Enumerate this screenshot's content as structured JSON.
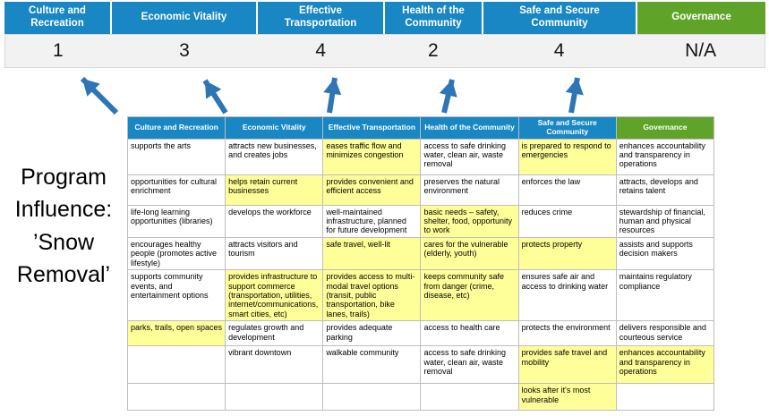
{
  "title": "Program Influence: ’Snow Removal’",
  "colors": {
    "header_blue": "#1887C4",
    "header_green": "#5FA428",
    "highlight_yellow": "#FFFF99",
    "arrow_blue": "#2E75B6",
    "score_band_gray": "#F2F2F2"
  },
  "banner": {
    "columns": [
      {
        "label": "Culture and Recreation",
        "score": "1",
        "color": "#1887C4"
      },
      {
        "label": "Economic Vitality",
        "score": "3",
        "color": "#1887C4"
      },
      {
        "label": "Effective Transportation",
        "score": "4",
        "color": "#1887C4"
      },
      {
        "label": "Health of the Community",
        "score": "2",
        "color": "#1887C4"
      },
      {
        "label": "Safe and Secure Community",
        "score": "4",
        "color": "#1887C4"
      },
      {
        "label": "Governance",
        "score": "N/A",
        "color": "#5FA428"
      }
    ]
  },
  "table": {
    "headers": [
      {
        "label": "Culture and Recreation",
        "color": "#1887C4"
      },
      {
        "label": "Economic Vitality",
        "color": "#1887C4"
      },
      {
        "label": "Effective Transportation",
        "color": "#1887C4"
      },
      {
        "label": "Health of the Community",
        "color": "#1887C4"
      },
      {
        "label": "Safe and Secure Community",
        "color": "#1887C4"
      },
      {
        "label": "Governance",
        "color": "#5FA428"
      }
    ],
    "rows": [
      [
        {
          "text": "supports the arts",
          "highlight": false
        },
        {
          "text": "attracts new businesses, and creates jobs",
          "highlight": false
        },
        {
          "text": "eases traffic flow and minimizes congestion",
          "highlight": true
        },
        {
          "text": "access to safe drinking water, clean air, waste removal",
          "highlight": false
        },
        {
          "text": "is prepared to respond to emergencies",
          "highlight": true
        },
        {
          "text": "enhances accountability and transparency in operations",
          "highlight": false
        }
      ],
      [
        {
          "text": "opportunities for cultural enrichment",
          "highlight": false
        },
        {
          "text": "helps retain current businesses",
          "highlight": true
        },
        {
          "text": "provides convenient and efficient access",
          "highlight": true
        },
        {
          "text": "preserves the natural environment",
          "highlight": false
        },
        {
          "text": "enforces the law",
          "highlight": false
        },
        {
          "text": "attracts, develops and retains talent",
          "highlight": false
        }
      ],
      [
        {
          "text": "life-long learning opportunities (libraries)",
          "highlight": false
        },
        {
          "text": "develops the workforce",
          "highlight": false
        },
        {
          "text": "well-maintained infrastructure, planned for future development",
          "highlight": false
        },
        {
          "text": "basic needs – safety, shelter, food, opportunity to work",
          "highlight": true
        },
        {
          "text": "reduces crime",
          "highlight": false
        },
        {
          "text": "stewardship of financial, human and physical resources",
          "highlight": false
        }
      ],
      [
        {
          "text": "encourages healthy people (promotes active lifestyle)",
          "highlight": false
        },
        {
          "text": "attracts visitors and tourism",
          "highlight": false
        },
        {
          "text": "safe travel, well-lit",
          "highlight": true
        },
        {
          "text": "cares for the vulnerable (elderly, youth)",
          "highlight": true
        },
        {
          "text": "protects property",
          "highlight": true
        },
        {
          "text": "assists and supports decision makers",
          "highlight": false
        }
      ],
      [
        {
          "text": "supports community events, and entertainment options",
          "highlight": false
        },
        {
          "text": "provides infrastructure to support commerce (transportation, utilities, internet/communications, smart cities, etc)",
          "highlight": true
        },
        {
          "text": "provides access to multi-modal travel options (transit, public transportation, bike lanes, trails)",
          "highlight": true
        },
        {
          "text": "keeps community safe from danger (crime, disease, etc)",
          "highlight": true
        },
        {
          "text": "ensures safe air and access to drinking water",
          "highlight": false
        },
        {
          "text": "maintains regulatory compliance",
          "highlight": false
        }
      ],
      [
        {
          "text": "parks, trails, open spaces",
          "highlight": true
        },
        {
          "text": "regulates growth and development",
          "highlight": false
        },
        {
          "text": "provides adequate parking",
          "highlight": false
        },
        {
          "text": "access to health care",
          "highlight": false
        },
        {
          "text": "protects the environment",
          "highlight": false
        },
        {
          "text": "delivers responsible and courteous service",
          "highlight": false
        }
      ],
      [
        {
          "text": "",
          "highlight": false
        },
        {
          "text": "vibrant downtown",
          "highlight": false
        },
        {
          "text": "walkable community",
          "highlight": false
        },
        {
          "text": "access to safe drinking water, clean air, waste removal",
          "highlight": false
        },
        {
          "text": "provides safe travel and mobility",
          "highlight": true
        },
        {
          "text": "enhances accountability and transparency in operations",
          "highlight": true
        }
      ],
      [
        {
          "text": "",
          "highlight": false
        },
        {
          "text": "",
          "highlight": false
        },
        {
          "text": "",
          "highlight": false
        },
        {
          "text": "",
          "highlight": false
        },
        {
          "text": "looks after it's most vulnerable",
          "highlight": true
        },
        {
          "text": "",
          "highlight": false
        }
      ]
    ]
  }
}
